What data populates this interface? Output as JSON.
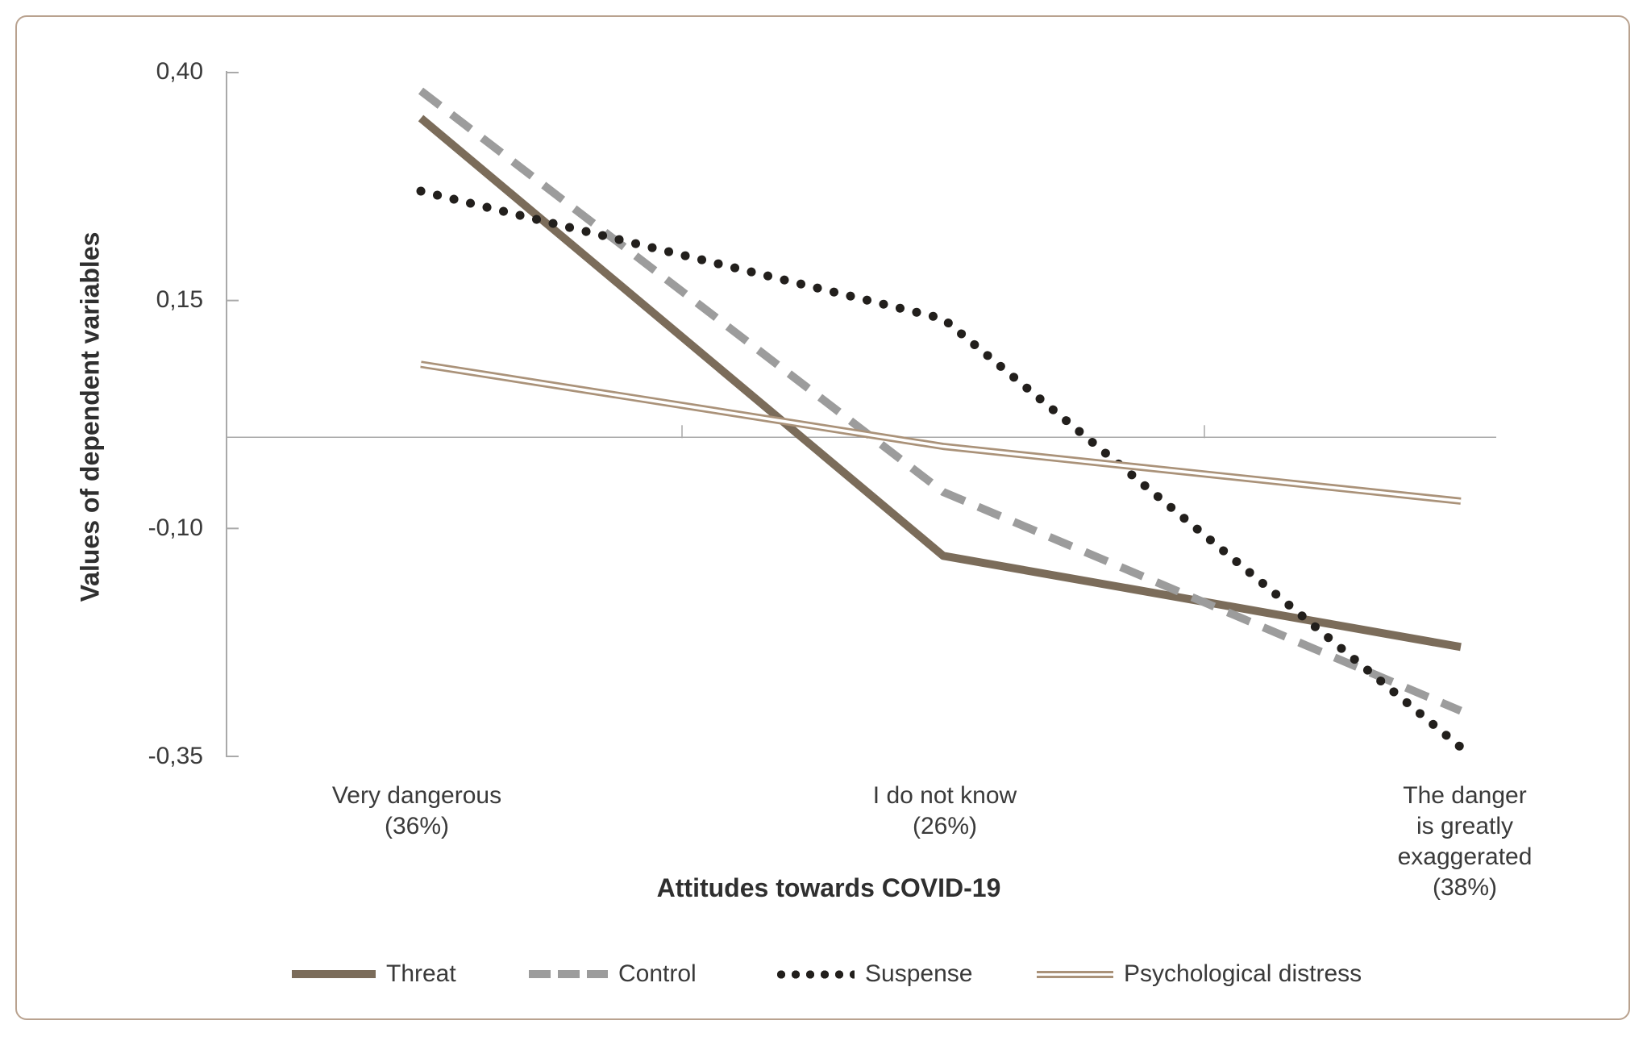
{
  "figure": {
    "background": "#ffffff",
    "border_color": "#b9a28f",
    "axis_color": "#a9a9a9"
  },
  "chart_data": {
    "type": "line",
    "xlabel": "Attitudes towards COVID-19",
    "ylabel": "Values of dependent variables",
    "categories": [
      "Very dangerous\n(36%)",
      "I do not know\n(26%)",
      "The danger\nis greatly exaggerated\n(38%)"
    ],
    "y_ticks": [
      0.4,
      0.15,
      -0.1,
      -0.35
    ],
    "y_tick_labels": [
      "0,40",
      "0,15",
      "-0,10",
      "-0,35"
    ],
    "ylim": [
      -0.35,
      0.4
    ],
    "grid": "zero-baseline-only",
    "legend_position": "bottom",
    "series": [
      {
        "name": "Threat",
        "style": "solid",
        "color": "#7b6c5a",
        "values": [
          0.35,
          -0.13,
          -0.23
        ]
      },
      {
        "name": "Control",
        "style": "dashed",
        "color": "#9c9c9c",
        "values": [
          0.38,
          -0.06,
          -0.3
        ]
      },
      {
        "name": "Suspense",
        "style": "dotted",
        "color": "#221f1c",
        "values": [
          0.27,
          0.13,
          -0.34
        ]
      },
      {
        "name": "Psychological distress",
        "style": "double",
        "color": "#aa9279",
        "values": [
          0.08,
          -0.01,
          -0.07
        ]
      }
    ]
  }
}
